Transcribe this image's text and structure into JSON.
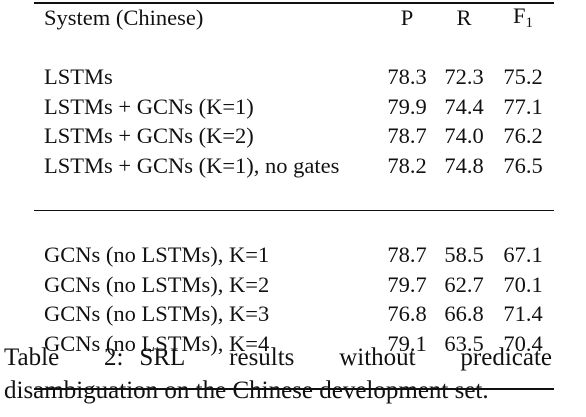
{
  "table": {
    "headers": {
      "system": "System (Chinese)",
      "p": "P",
      "r": "R",
      "f_main": "F",
      "f_sub": "1"
    },
    "group1": [
      {
        "system": "LSTMs",
        "p": "78.3",
        "r": "72.3",
        "f": "75.2"
      },
      {
        "system": "LSTMs + GCNs (K=1)",
        "p": "79.9",
        "r": "74.4",
        "f": "77.1"
      },
      {
        "system": "LSTMs + GCNs (K=2)",
        "p": "78.7",
        "r": "74.0",
        "f": "76.2"
      },
      {
        "system": "LSTMs + GCNs (K=1), no gates",
        "p": "78.2",
        "r": "74.8",
        "f": "76.5"
      }
    ],
    "group2": [
      {
        "system": "GCNs (no LSTMs), K=1",
        "p": "78.7",
        "r": "58.5",
        "f": "67.1"
      },
      {
        "system": "GCNs (no LSTMs), K=2",
        "p": "79.7",
        "r": "62.7",
        "f": "70.1"
      },
      {
        "system": "GCNs (no LSTMs), K=3",
        "p": "76.8",
        "r": "66.8",
        "f": "71.4"
      },
      {
        "system": "GCNs (no LSTMs), K=4",
        "p": "79.1",
        "r": "63.5",
        "f": "70.4"
      }
    ]
  },
  "caption": {
    "label": "Table 2:",
    "text": "SRL results without predicate disambiguation on the Chinese development set."
  }
}
